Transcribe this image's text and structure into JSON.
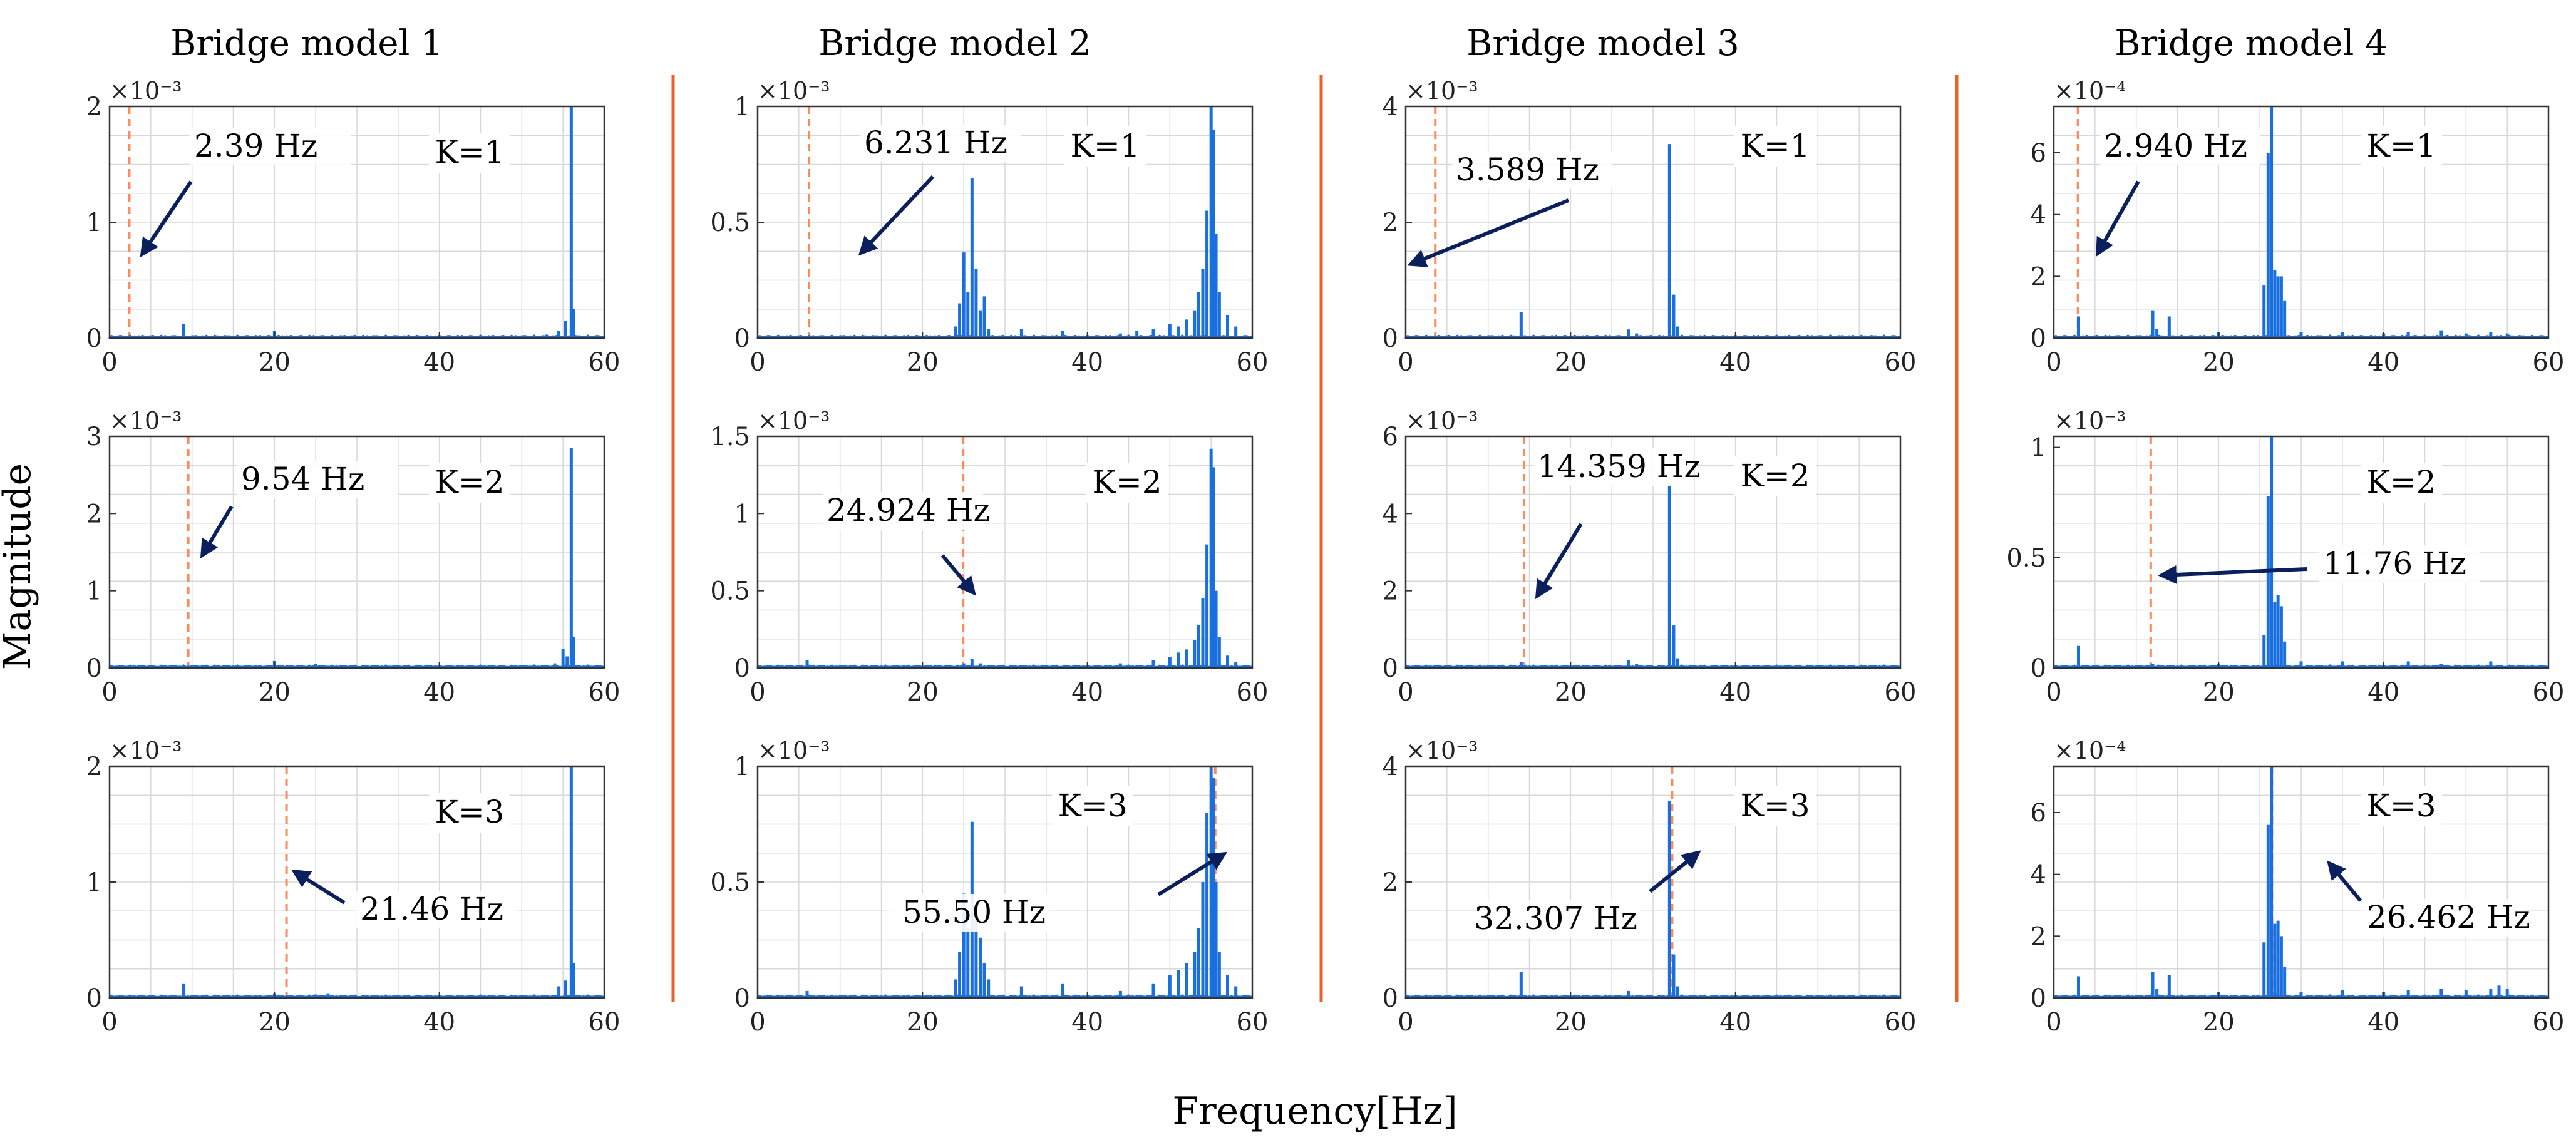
{
  "figure": {
    "ylabel": "Magnitude",
    "xlabel": "Frequency[Hz]",
    "colors": {
      "signal": "#1a6fe0",
      "marker": "#ff8a5c",
      "arrow": "#0b1f5c",
      "divider": "#e8622a",
      "grid": "#d8d8d8",
      "axis": "#333333"
    }
  },
  "chart_data": [
    {
      "title": "Bridge model 1",
      "panels": [
        {
          "k_label": "K=1",
          "scale_label": "×10⁻³",
          "ylim": [
            0,
            2
          ],
          "yticks": [
            "0",
            "1",
            "2"
          ],
          "xlim": [
            0,
            60
          ],
          "xticks": [
            "0",
            "20",
            "40",
            "60"
          ],
          "marker_hz": 2.39,
          "freq_label": "2.39 Hz",
          "spikes": [
            [
              9,
              0.12
            ],
            [
              20,
              0.06
            ],
            [
              25,
              0.02
            ],
            [
              53,
              0.03
            ],
            [
              54.5,
              0.06
            ],
            [
              55.3,
              0.15
            ],
            [
              56,
              2.0
            ],
            [
              56.3,
              0.25
            ]
          ]
        },
        {
          "k_label": "K=2",
          "scale_label": "×10⁻³",
          "ylim": [
            0,
            3
          ],
          "yticks": [
            "0",
            "1",
            "2",
            "3"
          ],
          "xlim": [
            0,
            60
          ],
          "xticks": [
            "0",
            "20",
            "40",
            "60"
          ],
          "marker_hz": 9.54,
          "freq_label": "9.54 Hz",
          "spikes": [
            [
              9,
              0.03
            ],
            [
              20,
              0.09
            ],
            [
              25,
              0.05
            ],
            [
              27,
              0.03
            ],
            [
              54,
              0.06
            ],
            [
              55,
              0.25
            ],
            [
              55.5,
              0.15
            ],
            [
              56,
              2.85
            ],
            [
              56.3,
              0.4
            ]
          ]
        },
        {
          "k_label": "K=3",
          "scale_label": "×10⁻³",
          "ylim": [
            0,
            2
          ],
          "yticks": [
            "0",
            "1",
            "2"
          ],
          "xlim": [
            0,
            60
          ],
          "xticks": [
            "0",
            "20",
            "40",
            "60"
          ],
          "marker_hz": 21.46,
          "freq_label": "21.46 Hz",
          "spikes": [
            [
              9,
              0.12
            ],
            [
              20,
              0.04
            ],
            [
              25,
              0.03
            ],
            [
              26.5,
              0.04
            ],
            [
              54.5,
              0.1
            ],
            [
              55.3,
              0.15
            ],
            [
              56,
              2.0
            ],
            [
              56.3,
              0.3
            ]
          ]
        }
      ]
    },
    {
      "title": "Bridge model 2",
      "panels": [
        {
          "k_label": "K=1",
          "scale_label": "×10⁻³",
          "ylim": [
            0,
            1
          ],
          "yticks": [
            "0",
            "0.5",
            "1"
          ],
          "xlim": [
            0,
            60
          ],
          "xticks": [
            "0",
            "20",
            "40",
            "60"
          ],
          "marker_hz": 6.231,
          "freq_label": "6.231 Hz",
          "spikes": [
            [
              24,
              0.05
            ],
            [
              24.5,
              0.15
            ],
            [
              25,
              0.37
            ],
            [
              25.5,
              0.2
            ],
            [
              26,
              0.69
            ],
            [
              26.5,
              0.3
            ],
            [
              27,
              0.12
            ],
            [
              27.5,
              0.18
            ],
            [
              28,
              0.04
            ],
            [
              32,
              0.04
            ],
            [
              37,
              0.03
            ],
            [
              44,
              0.02
            ],
            [
              46,
              0.03
            ],
            [
              48,
              0.04
            ],
            [
              50,
              0.06
            ],
            [
              51,
              0.05
            ],
            [
              52,
              0.08
            ],
            [
              53,
              0.12
            ],
            [
              53.5,
              0.2
            ],
            [
              54,
              0.3
            ],
            [
              54.5,
              0.55
            ],
            [
              55,
              1.0
            ],
            [
              55.3,
              0.9
            ],
            [
              55.6,
              0.45
            ],
            [
              56,
              0.2
            ],
            [
              57,
              0.1
            ],
            [
              58,
              0.05
            ]
          ]
        },
        {
          "k_label": "K=2",
          "scale_label": "×10⁻³",
          "ylim": [
            0,
            1.5
          ],
          "yticks": [
            "0",
            "0.5",
            "1",
            "1.5"
          ],
          "xlim": [
            0,
            60
          ],
          "xticks": [
            "0",
            "20",
            "40",
            "60"
          ],
          "marker_hz": 24.924,
          "freq_label": "24.924 Hz",
          "spikes": [
            [
              6,
              0.05
            ],
            [
              25,
              0.03
            ],
            [
              26,
              0.06
            ],
            [
              27,
              0.03
            ],
            [
              32,
              0.02
            ],
            [
              44,
              0.03
            ],
            [
              48,
              0.05
            ],
            [
              50,
              0.07
            ],
            [
              51,
              0.1
            ],
            [
              52,
              0.12
            ],
            [
              53,
              0.18
            ],
            [
              53.5,
              0.28
            ],
            [
              54,
              0.45
            ],
            [
              54.5,
              0.8
            ],
            [
              55,
              1.42
            ],
            [
              55.3,
              1.3
            ],
            [
              55.6,
              0.5
            ],
            [
              56,
              0.2
            ],
            [
              57,
              0.08
            ],
            [
              58,
              0.04
            ]
          ]
        },
        {
          "k_label": "K=3",
          "scale_label": "×10⁻³",
          "ylim": [
            0,
            1
          ],
          "yticks": [
            "0",
            "0.5",
            "1"
          ],
          "xlim": [
            0,
            60
          ],
          "xticks": [
            "0",
            "20",
            "40",
            "60"
          ],
          "marker_hz": 55.5,
          "freq_label": "55.50 Hz",
          "spikes": [
            [
              6,
              0.03
            ],
            [
              24,
              0.08
            ],
            [
              24.5,
              0.2
            ],
            [
              25,
              0.45
            ],
            [
              25.5,
              0.3
            ],
            [
              26,
              0.76
            ],
            [
              26.5,
              0.35
            ],
            [
              27,
              0.26
            ],
            [
              27.5,
              0.15
            ],
            [
              28,
              0.08
            ],
            [
              32,
              0.05
            ],
            [
              37,
              0.06
            ],
            [
              44,
              0.03
            ],
            [
              48,
              0.06
            ],
            [
              50,
              0.1
            ],
            [
              51,
              0.12
            ],
            [
              52,
              0.15
            ],
            [
              53,
              0.2
            ],
            [
              53.5,
              0.3
            ],
            [
              54,
              0.5
            ],
            [
              54.5,
              0.8
            ],
            [
              55,
              1.0
            ],
            [
              55.3,
              0.95
            ],
            [
              55.6,
              0.5
            ],
            [
              56,
              0.2
            ],
            [
              57,
              0.1
            ],
            [
              58,
              0.05
            ]
          ]
        }
      ]
    },
    {
      "title": "Bridge model 3",
      "panels": [
        {
          "k_label": "K=1",
          "scale_label": "×10⁻³",
          "ylim": [
            0,
            4
          ],
          "yticks": [
            "0",
            "2",
            "4"
          ],
          "xlim": [
            0,
            60
          ],
          "xticks": [
            "0",
            "20",
            "40",
            "60"
          ],
          "marker_hz": 3.589,
          "freq_label": "3.589 Hz",
          "spikes": [
            [
              14,
              0.45
            ],
            [
              27,
              0.15
            ],
            [
              28,
              0.08
            ],
            [
              32,
              3.35
            ],
            [
              32.5,
              0.75
            ],
            [
              33,
              0.2
            ],
            [
              46,
              0.04
            ],
            [
              52,
              0.03
            ]
          ]
        },
        {
          "k_label": "K=2",
          "scale_label": "×10⁻³",
          "ylim": [
            0,
            6
          ],
          "yticks": [
            "0",
            "2",
            "4",
            "6"
          ],
          "xlim": [
            0,
            60
          ],
          "xticks": [
            "0",
            "20",
            "40",
            "60"
          ],
          "marker_hz": 14.359,
          "freq_label": "14.359 Hz",
          "spikes": [
            [
              14,
              0.15
            ],
            [
              27,
              0.2
            ],
            [
              28,
              0.1
            ],
            [
              32,
              4.75
            ],
            [
              32.5,
              1.1
            ],
            [
              33,
              0.25
            ],
            [
              46,
              0.05
            ]
          ]
        },
        {
          "k_label": "K=3",
          "scale_label": "×10⁻³",
          "ylim": [
            0,
            4
          ],
          "yticks": [
            "0",
            "2",
            "4"
          ],
          "xlim": [
            0,
            60
          ],
          "xticks": [
            "0",
            "20",
            "40",
            "60"
          ],
          "marker_hz": 32.307,
          "freq_label": "32.307 Hz",
          "spikes": [
            [
              14,
              0.45
            ],
            [
              27,
              0.12
            ],
            [
              32,
              3.4
            ],
            [
              32.5,
              0.75
            ],
            [
              33,
              0.2
            ],
            [
              46,
              0.04
            ]
          ]
        }
      ]
    },
    {
      "title": "Bridge model 4",
      "panels": [
        {
          "k_label": "K=1",
          "scale_label": "×10⁻⁴",
          "ylim": [
            0,
            7.5
          ],
          "yticks": [
            "0",
            "2",
            "4",
            "6"
          ],
          "xlim": [
            0,
            60
          ],
          "xticks": [
            "0",
            "20",
            "40",
            "60"
          ],
          "marker_hz": 2.94,
          "freq_label": "2.940 Hz",
          "spikes": [
            [
              3,
              0.7
            ],
            [
              12,
              0.9
            ],
            [
              12.5,
              0.3
            ],
            [
              14,
              0.7
            ],
            [
              20,
              0.2
            ],
            [
              25.5,
              1.7
            ],
            [
              26,
              6.0
            ],
            [
              26.4,
              7.5
            ],
            [
              26.8,
              2.2
            ],
            [
              27.2,
              2.0
            ],
            [
              27.6,
              2.0
            ],
            [
              28,
              1.2
            ],
            [
              30,
              0.2
            ],
            [
              35,
              0.2
            ],
            [
              40,
              0.15
            ],
            [
              43,
              0.2
            ],
            [
              47,
              0.25
            ],
            [
              50,
              0.15
            ],
            [
              53,
              0.2
            ],
            [
              55,
              0.15
            ]
          ]
        },
        {
          "k_label": "K=2",
          "scale_label": "×10⁻³",
          "ylim": [
            0,
            1.05
          ],
          "yticks": [
            "0",
            "0.5",
            "1"
          ],
          "xlim": [
            0,
            60
          ],
          "xticks": [
            "0",
            "20",
            "40",
            "60"
          ],
          "marker_hz": 11.76,
          "freq_label": "11.76 Hz",
          "spikes": [
            [
              3,
              0.1
            ],
            [
              12,
              0.02
            ],
            [
              20,
              0.02
            ],
            [
              25.5,
              0.15
            ],
            [
              26,
              0.78
            ],
            [
              26.4,
              1.05
            ],
            [
              26.8,
              0.3
            ],
            [
              27.2,
              0.33
            ],
            [
              27.6,
              0.28
            ],
            [
              28,
              0.12
            ],
            [
              30,
              0.03
            ],
            [
              35,
              0.03
            ],
            [
              43,
              0.03
            ],
            [
              47,
              0.02
            ],
            [
              53,
              0.03
            ]
          ]
        },
        {
          "k_label": "K=3",
          "scale_label": "×10⁻⁴",
          "ylim": [
            0,
            7.5
          ],
          "yticks": [
            "0",
            "2",
            "4",
            "6"
          ],
          "xlim": [
            0,
            60
          ],
          "xticks": [
            "0",
            "20",
            "40",
            "60"
          ],
          "marker_hz": 26.462,
          "freq_label": "26.462 Hz",
          "spikes": [
            [
              3,
              0.7
            ],
            [
              12,
              0.85
            ],
            [
              12.5,
              0.3
            ],
            [
              14,
              0.75
            ],
            [
              20,
              0.2
            ],
            [
              25.5,
              1.8
            ],
            [
              26,
              5.6
            ],
            [
              26.4,
              7.5
            ],
            [
              26.8,
              2.4
            ],
            [
              27.2,
              2.5
            ],
            [
              27.6,
              2.0
            ],
            [
              28,
              1.0
            ],
            [
              30,
              0.2
            ],
            [
              35,
              0.25
            ],
            [
              40,
              0.2
            ],
            [
              43,
              0.25
            ],
            [
              47,
              0.3
            ],
            [
              50,
              0.25
            ],
            [
              53,
              0.3
            ],
            [
              54,
              0.4
            ],
            [
              55,
              0.3
            ]
          ]
        }
      ]
    }
  ]
}
